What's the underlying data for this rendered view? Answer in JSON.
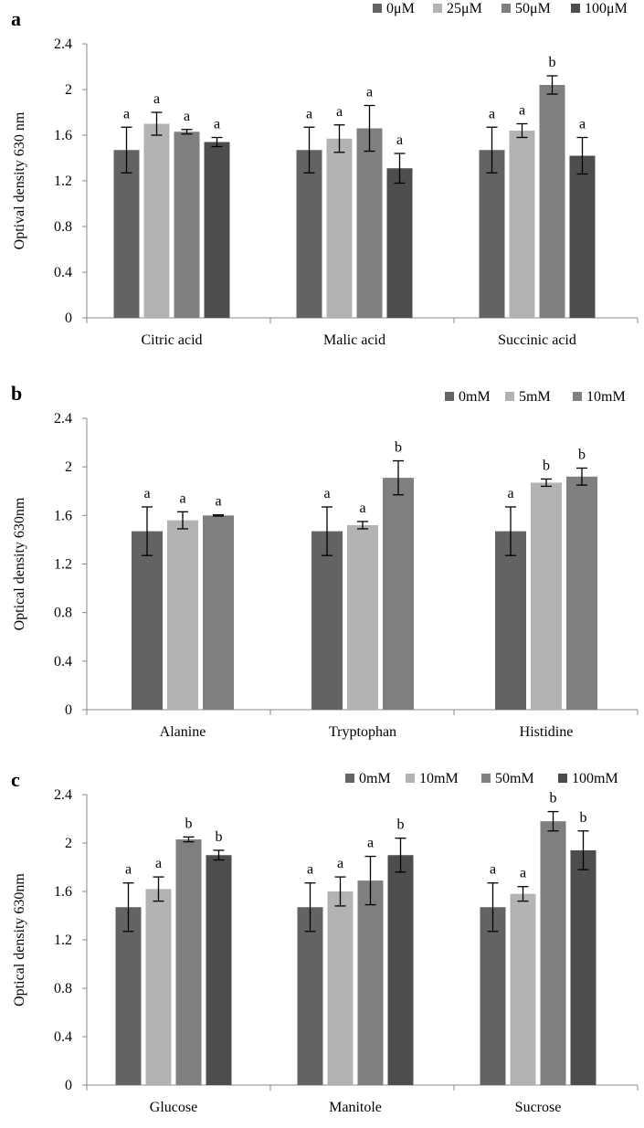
{
  "figure": {
    "panels": [
      {
        "letter": "a",
        "ylabel": "Optival density 630 nm",
        "y_ticks": [
          "0",
          "0.4",
          "0.8",
          "1.2",
          "1.6",
          "2",
          "2.4"
        ],
        "legend": [
          "0μM",
          "25μM",
          "50μM",
          "100μM"
        ]
      },
      {
        "letter": "b",
        "ylabel": "Optical density 630nm",
        "y_ticks": [
          "0",
          "0.4",
          "0.8",
          "1.2",
          "1.6",
          "2",
          "2.4"
        ],
        "legend": [
          "0mM",
          "5mM",
          "10mM"
        ]
      },
      {
        "letter": "c",
        "ylabel": "Optical density 630nm",
        "y_ticks": [
          "0",
          "0.4",
          "0.8",
          "1.2",
          "1.6",
          "2",
          "2.4"
        ],
        "legend": [
          "0mM",
          "10mM",
          "50mM",
          "100mM"
        ]
      }
    ]
  },
  "chart_data": [
    {
      "type": "bar",
      "panel": "a",
      "title": "",
      "xlabel": "",
      "ylabel": "Optival density 630 nm",
      "ylim": [
        0,
        2.4
      ],
      "grid": false,
      "legend_position": "top-right",
      "categories": [
        "Citric acid",
        "Malic acid",
        "Succinic acid"
      ],
      "series": [
        {
          "name": "0μM",
          "color": "#636363",
          "values": [
            1.47,
            1.47,
            1.47
          ],
          "errors": [
            0.2,
            0.2,
            0.2
          ],
          "labels": [
            "a",
            "a",
            "a"
          ]
        },
        {
          "name": "25μM",
          "color": "#b3b3b3",
          "values": [
            1.7,
            1.57,
            1.64
          ],
          "errors": [
            0.1,
            0.12,
            0.06
          ],
          "labels": [
            "a",
            "a",
            "a"
          ]
        },
        {
          "name": "50μM",
          "color": "#7f7f7f",
          "values": [
            1.63,
            1.66,
            2.04
          ],
          "errors": [
            0.02,
            0.2,
            0.08
          ],
          "labels": [
            "a",
            "a",
            "b"
          ]
        },
        {
          "name": "100μM",
          "color": "#4d4d4d",
          "values": [
            1.54,
            1.31,
            1.42
          ],
          "errors": [
            0.04,
            0.13,
            0.16
          ],
          "labels": [
            "a",
            "a",
            "a"
          ]
        }
      ]
    },
    {
      "type": "bar",
      "panel": "b",
      "title": "",
      "xlabel": "",
      "ylabel": "Optical density 630nm",
      "ylim": [
        0,
        2.4
      ],
      "grid": false,
      "legend_position": "top-right",
      "categories": [
        "Alanine",
        "Tryptophan",
        "Histidine"
      ],
      "series": [
        {
          "name": "0mM",
          "color": "#636363",
          "values": [
            1.47,
            1.47,
            1.47
          ],
          "errors": [
            0.2,
            0.2,
            0.2
          ],
          "labels": [
            "a",
            "a",
            "a"
          ]
        },
        {
          "name": "5mM",
          "color": "#b3b3b3",
          "values": [
            1.56,
            1.52,
            1.87
          ],
          "errors": [
            0.07,
            0.03,
            0.03
          ],
          "labels": [
            "a",
            "a",
            "b"
          ]
        },
        {
          "name": "10mM",
          "color": "#7f7f7f",
          "values": [
            1.6,
            1.91,
            1.92
          ],
          "errors": [
            0.005,
            0.14,
            0.07
          ],
          "labels": [
            "a",
            "b",
            "b"
          ]
        }
      ]
    },
    {
      "type": "bar",
      "panel": "c",
      "title": "",
      "xlabel": "",
      "ylabel": "Optical density 630nm",
      "ylim": [
        0,
        2.4
      ],
      "grid": false,
      "legend_position": "top-right",
      "categories": [
        "Glucose",
        "Manitole",
        "Sucrose"
      ],
      "series": [
        {
          "name": "0mM",
          "color": "#636363",
          "values": [
            1.47,
            1.47,
            1.47
          ],
          "errors": [
            0.2,
            0.2,
            0.2
          ],
          "labels": [
            "a",
            "a",
            "a"
          ]
        },
        {
          "name": "10mM",
          "color": "#b3b3b3",
          "values": [
            1.62,
            1.6,
            1.58
          ],
          "errors": [
            0.1,
            0.12,
            0.06
          ],
          "labels": [
            "a",
            "a",
            "a"
          ]
        },
        {
          "name": "50mM",
          "color": "#7f7f7f",
          "values": [
            2.03,
            1.69,
            2.18
          ],
          "errors": [
            0.02,
            0.2,
            0.08
          ],
          "labels": [
            "b",
            "a",
            "b"
          ]
        },
        {
          "name": "100mM",
          "color": "#4d4d4d",
          "values": [
            1.9,
            1.9,
            1.94
          ],
          "errors": [
            0.04,
            0.14,
            0.16
          ],
          "labels": [
            "b",
            "b",
            "b"
          ]
        }
      ]
    }
  ]
}
